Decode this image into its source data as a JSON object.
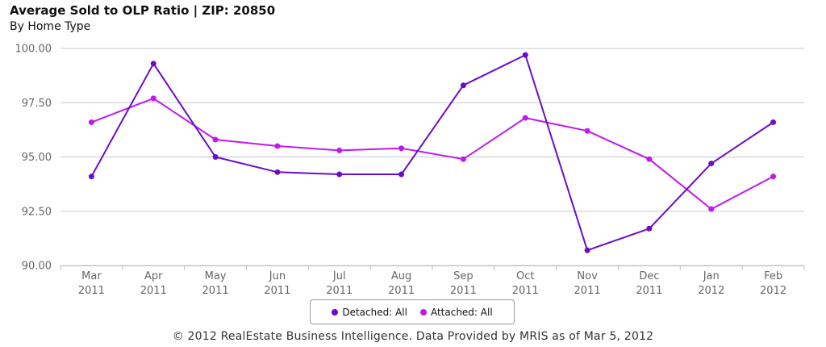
{
  "chart_data": {
    "type": "line",
    "title": "Average Sold to OLP Ratio | ZIP: 20850",
    "subtitle": "By Home Type",
    "categories": [
      "Mar 2011",
      "Apr 2011",
      "May 2011",
      "Jun 2011",
      "Jul 2011",
      "Aug 2011",
      "Sep 2011",
      "Oct 2011",
      "Nov 2011",
      "Dec 2011",
      "Jan 2012",
      "Feb 2012"
    ],
    "x_ticks": [
      {
        "month": "Mar",
        "year": "2011"
      },
      {
        "month": "Apr",
        "year": "2011"
      },
      {
        "month": "May",
        "year": "2011"
      },
      {
        "month": "Jun",
        "year": "2011"
      },
      {
        "month": "Jul",
        "year": "2011"
      },
      {
        "month": "Aug",
        "year": "2011"
      },
      {
        "month": "Sep",
        "year": "2011"
      },
      {
        "month": "Oct",
        "year": "2011"
      },
      {
        "month": "Nov",
        "year": "2011"
      },
      {
        "month": "Dec",
        "year": "2011"
      },
      {
        "month": "Jan",
        "year": "2012"
      },
      {
        "month": "Feb",
        "year": "2012"
      }
    ],
    "y_ticks": [
      "90.00",
      "92.50",
      "95.00",
      "97.50",
      "100.00"
    ],
    "ylim": [
      90,
      100
    ],
    "grid": true,
    "legend_position": "bottom-center",
    "series": [
      {
        "name": "Detached: All",
        "color": "#6a0dc8",
        "values": [
          94.1,
          99.3,
          95.0,
          94.3,
          94.2,
          94.2,
          98.3,
          99.7,
          90.7,
          91.7,
          94.7,
          96.6
        ]
      },
      {
        "name": "Attached: All",
        "color": "#c218f0",
        "values": [
          96.6,
          97.7,
          95.8,
          95.5,
          95.3,
          95.4,
          94.9,
          96.8,
          96.2,
          94.9,
          92.6,
          94.1
        ]
      }
    ]
  },
  "footer": "© 2012 RealEstate Business Intelligence. Data Provided by MRIS as of Mar 5, 2012"
}
